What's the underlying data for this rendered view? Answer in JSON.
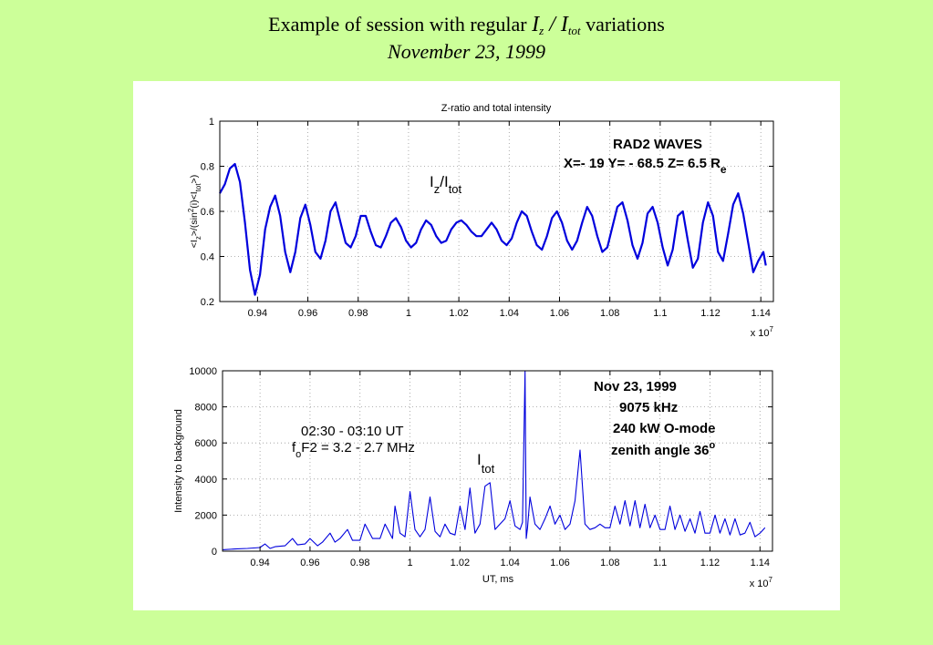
{
  "slide": {
    "title_prefix": "Example of  session with regular ",
    "title_var_main": "I",
    "title_var_sub1": "z",
    "title_sep": " / ",
    "title_var_main2": "I",
    "title_var_sub2": "tot",
    "title_suffix": " variations",
    "subtitle": "November 23, 1999"
  },
  "colors": {
    "background": "#ccff99",
    "line": "#0000dd",
    "grid": "#999999"
  },
  "chart_data": [
    {
      "type": "line",
      "title": "Z-ratio and total intensity",
      "xlabel": "",
      "ylabel_parts": [
        "<I",
        "z",
        ">/(sin",
        "2",
        "(i)<I",
        "tot",
        ">)"
      ],
      "xlim": [
        0.925,
        1.145
      ],
      "ylim": [
        0.2,
        1.0
      ],
      "x_exponent_label": "x 10",
      "x_exponent_power": "7",
      "xticks": [
        0.94,
        0.96,
        0.98,
        1.0,
        1.02,
        1.04,
        1.06,
        1.08,
        1.1,
        1.12,
        1.14
      ],
      "xtick_labels": [
        "0.94",
        "0.96",
        "0.98",
        "1",
        "1.02",
        "1.04",
        "1.06",
        "1.08",
        "1.1",
        "1.12",
        "1.14"
      ],
      "yticks": [
        0.2,
        0.4,
        0.6,
        0.8,
        1.0
      ],
      "ytick_labels": [
        "0.2",
        "0.4",
        "0.6",
        "0.8",
        "1"
      ],
      "grid": true,
      "annotations": {
        "label_main": "I",
        "label_sub": "z",
        "label_slash": "/I",
        "label_sub2": "tot",
        "box_title": "RAD2 WAVES",
        "coords": "X=- 19  Y= - 68.5  Z= 6.5  R",
        "coords_sub": "e"
      },
      "series": [
        {
          "x": [
            0.925,
            0.927,
            0.929,
            0.931,
            0.933,
            0.935,
            0.937,
            0.939,
            0.941,
            0.943,
            0.945,
            0.947,
            0.949,
            0.951,
            0.953,
            0.955,
            0.957,
            0.959,
            0.961,
            0.963,
            0.965,
            0.967,
            0.969,
            0.971,
            0.973,
            0.975,
            0.977,
            0.979,
            0.981,
            0.983,
            0.985,
            0.987,
            0.989,
            0.991,
            0.993,
            0.995,
            0.997,
            0.999,
            1.001,
            1.003,
            1.005,
            1.007,
            1.009,
            1.011,
            1.013,
            1.015,
            1.017,
            1.019,
            1.021,
            1.023,
            1.025,
            1.027,
            1.029,
            1.031,
            1.033,
            1.035,
            1.037,
            1.039,
            1.041,
            1.043,
            1.045,
            1.047,
            1.049,
            1.051,
            1.053,
            1.055,
            1.057,
            1.059,
            1.061,
            1.063,
            1.065,
            1.067,
            1.069,
            1.071,
            1.073,
            1.075,
            1.077,
            1.079,
            1.081,
            1.083,
            1.085,
            1.087,
            1.089,
            1.091,
            1.093,
            1.095,
            1.097,
            1.099,
            1.101,
            1.103,
            1.105,
            1.107,
            1.109,
            1.111,
            1.113,
            1.115,
            1.117,
            1.119,
            1.121,
            1.123,
            1.125,
            1.127,
            1.129,
            1.131,
            1.133,
            1.135,
            1.137,
            1.139,
            1.141,
            1.142
          ],
          "y": [
            0.68,
            0.72,
            0.79,
            0.81,
            0.73,
            0.55,
            0.34,
            0.23,
            0.32,
            0.52,
            0.62,
            0.67,
            0.58,
            0.42,
            0.33,
            0.42,
            0.57,
            0.63,
            0.54,
            0.42,
            0.39,
            0.47,
            0.6,
            0.64,
            0.55,
            0.46,
            0.44,
            0.49,
            0.58,
            0.58,
            0.51,
            0.45,
            0.44,
            0.49,
            0.55,
            0.57,
            0.53,
            0.47,
            0.44,
            0.46,
            0.52,
            0.56,
            0.54,
            0.49,
            0.46,
            0.47,
            0.52,
            0.55,
            0.56,
            0.54,
            0.51,
            0.49,
            0.49,
            0.52,
            0.55,
            0.52,
            0.47,
            0.45,
            0.48,
            0.55,
            0.6,
            0.58,
            0.51,
            0.45,
            0.43,
            0.49,
            0.57,
            0.6,
            0.55,
            0.47,
            0.43,
            0.47,
            0.55,
            0.62,
            0.58,
            0.49,
            0.42,
            0.44,
            0.53,
            0.62,
            0.64,
            0.56,
            0.45,
            0.39,
            0.46,
            0.59,
            0.62,
            0.55,
            0.44,
            0.36,
            0.43,
            0.58,
            0.6,
            0.47,
            0.35,
            0.39,
            0.55,
            0.64,
            0.58,
            0.42,
            0.38,
            0.5,
            0.63,
            0.68,
            0.59,
            0.46,
            0.33,
            0.38,
            0.42,
            0.36
          ]
        }
      ]
    },
    {
      "type": "line",
      "title": "",
      "xlabel": "UT, ms",
      "ylabel": "Intensity to background",
      "xlim": [
        0.925,
        1.145
      ],
      "ylim": [
        0,
        10000
      ],
      "x_exponent_label": "x 10",
      "x_exponent_power": "7",
      "xticks": [
        0.94,
        0.96,
        0.98,
        1.0,
        1.02,
        1.04,
        1.06,
        1.08,
        1.1,
        1.12,
        1.14
      ],
      "xtick_labels": [
        "0.94",
        "0.96",
        "0.98",
        "1",
        "1.02",
        "1.04",
        "1.06",
        "1.08",
        "1.1",
        "1.12",
        "1.14"
      ],
      "yticks": [
        0,
        2000,
        4000,
        6000,
        8000,
        10000
      ],
      "ytick_labels": [
        "0",
        "2000",
        "4000",
        "6000",
        "8000",
        "10000"
      ],
      "grid": true,
      "annotations": {
        "time_range": "02:30 - 03:10 UT",
        "fof2_main": "f",
        "fof2_sub": "o",
        "fof2_rest": "F2 =  3.2 - 2.7 MHz",
        "itot_main": "I",
        "itot_sub": "tot",
        "date": "Nov 23, 1999",
        "frequency": "9075 kHz",
        "power": "240 kW  O-mode",
        "zenith": "zenith angle 36",
        "zenith_sup": "o"
      },
      "series": [
        {
          "x": [
            0.925,
            0.93,
            0.935,
            0.94,
            0.942,
            0.944,
            0.946,
            0.95,
            0.953,
            0.955,
            0.958,
            0.96,
            0.963,
            0.965,
            0.968,
            0.97,
            0.972,
            0.975,
            0.977,
            0.98,
            0.982,
            0.985,
            0.988,
            0.99,
            0.993,
            0.994,
            0.996,
            0.998,
            1.0,
            1.002,
            1.004,
            1.006,
            1.008,
            1.01,
            1.012,
            1.014,
            1.016,
            1.018,
            1.02,
            1.022,
            1.024,
            1.026,
            1.028,
            1.03,
            1.032,
            1.034,
            1.036,
            1.038,
            1.04,
            1.042,
            1.044,
            1.045,
            1.046,
            1.0465,
            1.047,
            1.048,
            1.05,
            1.052,
            1.054,
            1.056,
            1.058,
            1.06,
            1.062,
            1.064,
            1.066,
            1.068,
            1.07,
            1.072,
            1.074,
            1.076,
            1.078,
            1.08,
            1.082,
            1.084,
            1.086,
            1.088,
            1.09,
            1.092,
            1.094,
            1.096,
            1.098,
            1.1,
            1.102,
            1.104,
            1.106,
            1.108,
            1.11,
            1.112,
            1.114,
            1.116,
            1.118,
            1.12,
            1.122,
            1.124,
            1.126,
            1.128,
            1.13,
            1.132,
            1.134,
            1.136,
            1.138,
            1.14,
            1.142
          ],
          "y": [
            80,
            120,
            150,
            200,
            400,
            150,
            250,
            300,
            700,
            350,
            400,
            700,
            300,
            500,
            1000,
            500,
            700,
            1200,
            600,
            600,
            1500,
            700,
            700,
            1500,
            700,
            2500,
            1000,
            800,
            3300,
            1200,
            800,
            1200,
            3000,
            1100,
            800,
            1500,
            1000,
            900,
            2500,
            1200,
            3500,
            1000,
            1500,
            3600,
            3800,
            1200,
            1500,
            1800,
            2800,
            1400,
            1200,
            1600,
            10000,
            700,
            1300,
            3000,
            1500,
            1200,
            1800,
            2500,
            1500,
            2000,
            1200,
            1500,
            2800,
            5600,
            1500,
            1200,
            1300,
            1500,
            1300,
            1300,
            2500,
            1500,
            2800,
            1400,
            2800,
            1300,
            2600,
            1300,
            2000,
            1200,
            1200,
            2500,
            1200,
            2000,
            1100,
            1800,
            1000,
            2200,
            1000,
            1000,
            2000,
            1000,
            1800,
            900,
            1800,
            900,
            1000,
            1600,
            800,
            1000,
            1300
          ]
        }
      ]
    }
  ]
}
